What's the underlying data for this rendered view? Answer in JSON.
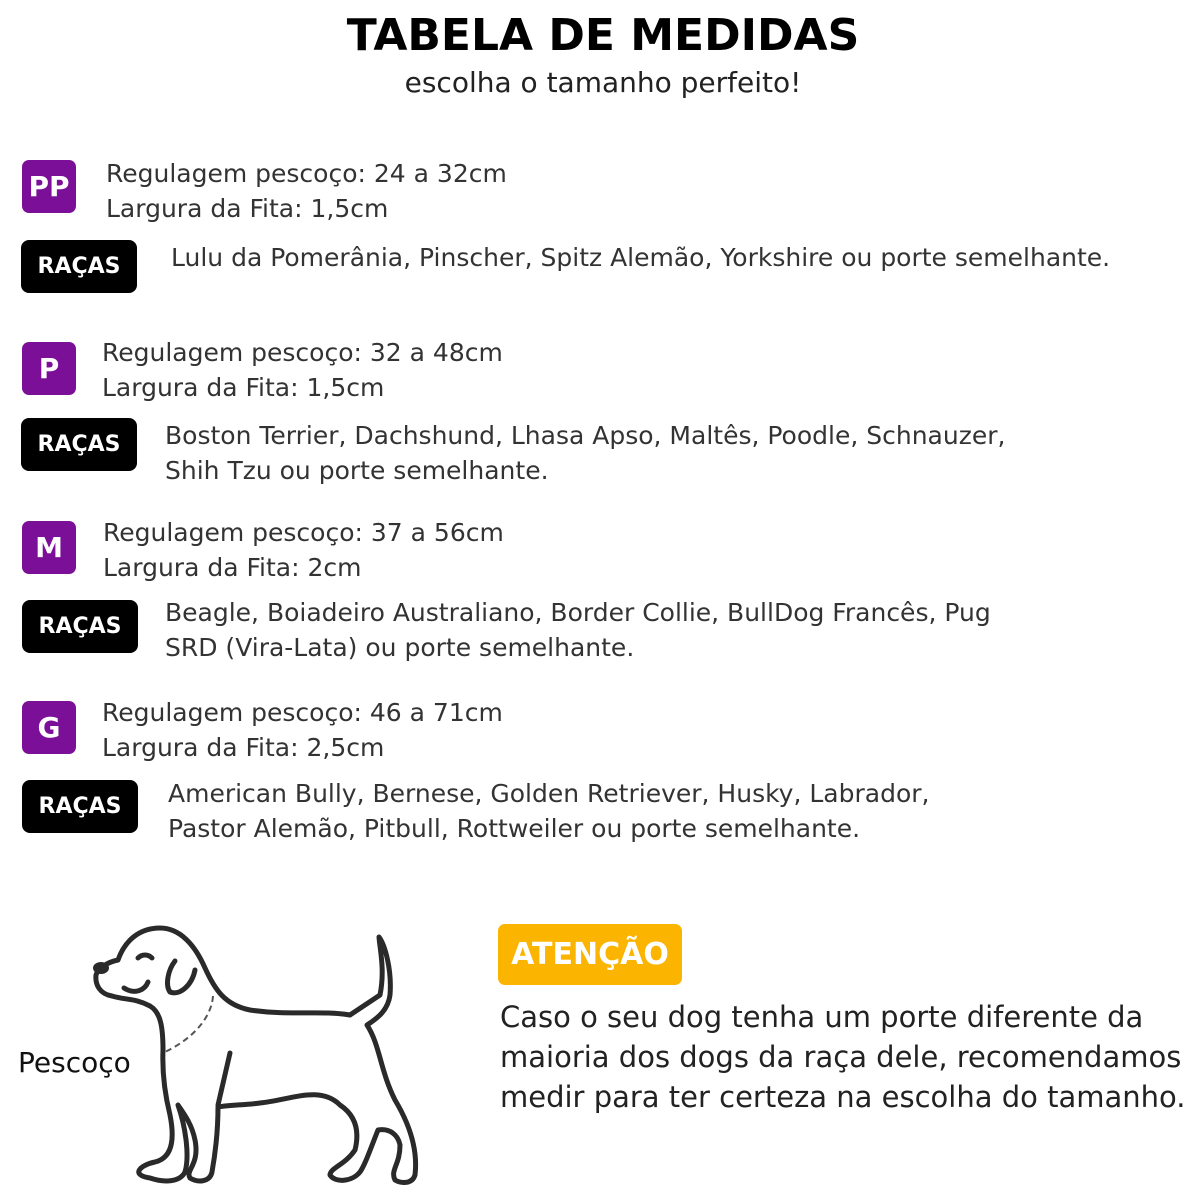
{
  "header": {
    "title": "TABELA DE MEDIDAS",
    "subtitle": "escolha o tamanho perfeito!"
  },
  "colors": {
    "size_badge": "#7b0f98",
    "racas_badge": "#000000",
    "attention": "#fbb400"
  },
  "sizes": [
    {
      "code": "PP",
      "neck": "Regulagem pescoço: 24 a 32cm",
      "width": "Largura da Fita: 1,5cm",
      "breeds_label": "RAÇAS",
      "breeds": [
        "Lulu da Pomerânia, Pinscher, Spitz Alemão, Yorkshire ou porte semelhante."
      ]
    },
    {
      "code": "P",
      "neck": "Regulagem pescoço: 32 a 48cm",
      "width": "Largura da Fita: 1,5cm",
      "breeds_label": "RAÇAS",
      "breeds": [
        "Boston Terrier, Dachshund, Lhasa Apso, Maltês, Poodle, Schnauzer,",
        "Shih Tzu ou porte semelhante."
      ]
    },
    {
      "code": "M",
      "neck": "Regulagem pescoço: 37 a 56cm",
      "width": "Largura da Fita: 2cm",
      "breeds_label": "RAÇAS",
      "breeds": [
        "Beagle, Boiadeiro Australiano, Border Collie, BullDog Francês, Pug",
        "SRD (Vira-Lata) ou porte semelhante."
      ]
    },
    {
      "code": "G",
      "neck": "Regulagem pescoço: 46 a 71cm",
      "width": "Largura da Fita: 2,5cm",
      "breeds_label": "RAÇAS",
      "breeds": [
        "American Bully, Bernese, Golden Retriever, Husky, Labrador,",
        "Pastor Alemão, Pitbull, Rottweiler ou porte semelhante."
      ]
    }
  ],
  "illustration": {
    "icon": "dog-outline-icon",
    "neck_label": "Pescoço"
  },
  "attention": {
    "label": "ATENÇÃO",
    "lines": [
      "Caso o seu dog tenha um porte diferente da",
      "maioria dos dogs da raça dele, recomendamos",
      "medir para ter certeza na escolha do tamanho."
    ]
  }
}
